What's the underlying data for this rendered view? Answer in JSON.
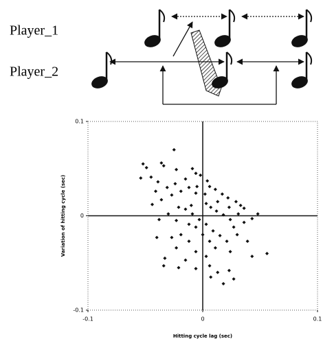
{
  "labels": {
    "player_1": "Player_1",
    "player_2": "Player_2"
  },
  "chart_data": {
    "type": "scatter",
    "x_label": "Hitting cycle lag (sec)",
    "y_label": "Variation of hitting cycle (sec)",
    "color": "#111111",
    "xlim": [
      -0.1,
      0.1
    ],
    "ylim": [
      -0.1,
      0.1
    ],
    "xticks": [
      -0.1,
      0,
      0.1
    ],
    "yticks": [
      -0.1,
      0,
      0.1
    ],
    "x": [
      -0.025,
      -0.052,
      -0.036,
      -0.034,
      -0.049,
      -0.054,
      -0.045,
      -0.039,
      -0.023,
      -0.009,
      -0.006,
      -0.002,
      -0.015,
      -0.024,
      -0.031,
      -0.041,
      -0.036,
      -0.027,
      -0.019,
      -0.012,
      -0.005,
      0.004,
      0.006,
      0.011,
      0.017,
      0.022,
      0.029,
      0.033,
      0.048,
      0.043,
      0.036,
      0.027,
      0.024,
      0.018,
      0.012,
      0.007,
      0.003,
      -0.01,
      -0.015,
      -0.021,
      -0.03,
      -0.038,
      -0.023,
      -0.012,
      -0.006,
      -0.003,
      0.003,
      0.009,
      0.015,
      0.021,
      0.03,
      0.039,
      0.043,
      0.056,
      0.024,
      0.011,
      0.003,
      -0.006,
      -0.012,
      -0.019,
      -0.027,
      -0.023,
      -0.033,
      -0.015,
      -0.006,
      0.006,
      0.013,
      0.023,
      0.007,
      0.018,
      0.027,
      -0.034,
      -0.021,
      -0.04,
      -0.044,
      0.002,
      0.013,
      0.023,
      0.031,
      0.036,
      0.0,
      0.006,
      -0.009,
      -0.006
    ],
    "y": [
      0.07,
      0.055,
      0.056,
      0.053,
      0.051,
      0.04,
      0.041,
      0.036,
      0.049,
      0.05,
      0.045,
      0.043,
      0.039,
      0.034,
      0.03,
      0.026,
      0.017,
      0.022,
      0.026,
      0.03,
      0.031,
      0.037,
      0.031,
      0.028,
      0.023,
      0.019,
      0.015,
      0.011,
      0.002,
      -0.003,
      -0.007,
      -0.012,
      -0.004,
      0.001,
      0.005,
      0.009,
      0.013,
      0.011,
      0.007,
      0.009,
      0.002,
      -0.004,
      -0.005,
      -0.009,
      -0.012,
      -0.004,
      -0.009,
      -0.016,
      -0.021,
      -0.027,
      -0.02,
      -0.027,
      -0.043,
      -0.04,
      -0.038,
      -0.034,
      -0.043,
      -0.038,
      -0.027,
      -0.02,
      -0.023,
      -0.034,
      -0.045,
      -0.047,
      -0.056,
      -0.053,
      -0.06,
      -0.058,
      -0.065,
      -0.072,
      -0.067,
      -0.053,
      -0.055,
      -0.023,
      0.012,
      0.023,
      0.015,
      0.009,
      0.002,
      0.008,
      -0.02,
      -0.027,
      0.002,
      0.024
    ]
  }
}
